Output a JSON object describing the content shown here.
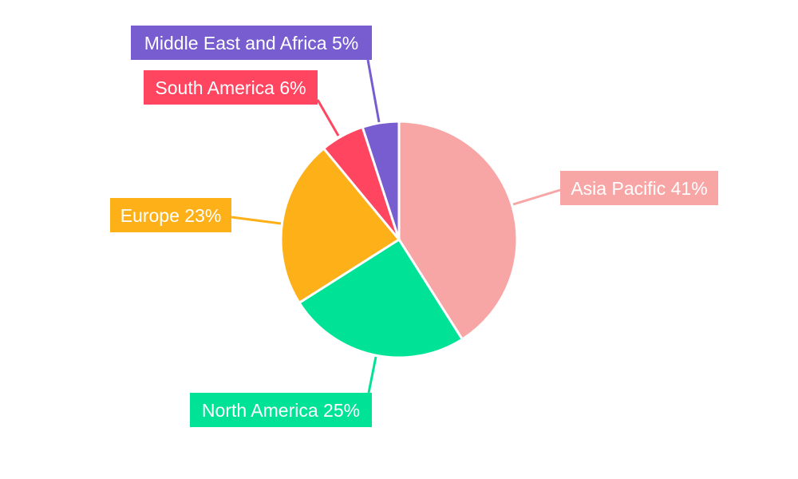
{
  "chart_data": {
    "type": "pie",
    "title": "",
    "start_angle": "12 o'clock, clockwise",
    "legend": "none (labels outside with leader lines)",
    "slices": [
      {
        "label": "Asia Pacific",
        "value": 41,
        "display": "Asia Pacific 41%",
        "color": "#F8A5A5"
      },
      {
        "label": "North America",
        "value": 25,
        "display": "North America 25%",
        "color": "#00E396"
      },
      {
        "label": "Europe",
        "value": 23,
        "display": "Europe 23%",
        "color": "#FEB019"
      },
      {
        "label": "South America",
        "value": 6,
        "display": "South America 6%",
        "color": "#FF4560"
      },
      {
        "label": "Middle East and Africa",
        "value": 5,
        "display": "Middle East and Africa 5%",
        "color": "#775DD0"
      }
    ]
  }
}
